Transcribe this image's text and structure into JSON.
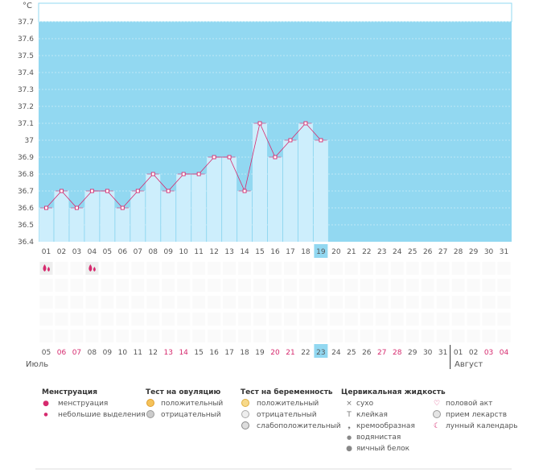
{
  "chart_data": {
    "type": "line",
    "unit_label": "°C",
    "y_ticks": [
      "37.7",
      "37.6",
      "37.5",
      "37.4",
      "37.3",
      "37.2",
      "37.1",
      "37",
      "36.9",
      "36.8",
      "36.7",
      "36.6",
      "36.5",
      "36.4"
    ],
    "ylim": [
      36.4,
      37.7
    ],
    "cycle_days": [
      "01",
      "02",
      "03",
      "04",
      "05",
      "06",
      "07",
      "08",
      "09",
      "10",
      "11",
      "12",
      "13",
      "14",
      "15",
      "16",
      "17",
      "18",
      "19",
      "20",
      "21",
      "22",
      "23",
      "24",
      "25",
      "26",
      "27",
      "28",
      "29",
      "30",
      "31"
    ],
    "current_cycle_day": "19",
    "temperatures": [
      36.6,
      36.7,
      36.6,
      36.7,
      36.7,
      36.6,
      36.7,
      36.8,
      36.7,
      36.8,
      36.8,
      36.9,
      36.9,
      36.7,
      37.1,
      36.9,
      37.0,
      37.1,
      37.0
    ],
    "menstruation_days": [
      "01",
      "04"
    ],
    "dates": [
      {
        "d": "05",
        "weekend": false
      },
      {
        "d": "06",
        "weekend": true
      },
      {
        "d": "07",
        "weekend": true
      },
      {
        "d": "08",
        "weekend": false
      },
      {
        "d": "09",
        "weekend": false
      },
      {
        "d": "10",
        "weekend": false
      },
      {
        "d": "11",
        "weekend": false
      },
      {
        "d": "12",
        "weekend": false
      },
      {
        "d": "13",
        "weekend": true
      },
      {
        "d": "14",
        "weekend": true
      },
      {
        "d": "15",
        "weekend": false
      },
      {
        "d": "16",
        "weekend": false
      },
      {
        "d": "17",
        "weekend": false
      },
      {
        "d": "18",
        "weekend": false
      },
      {
        "d": "19",
        "weekend": false
      },
      {
        "d": "20",
        "weekend": true
      },
      {
        "d": "21",
        "weekend": true
      },
      {
        "d": "22",
        "weekend": false
      },
      {
        "d": "23",
        "weekend": false
      },
      {
        "d": "24",
        "weekend": false
      },
      {
        "d": "25",
        "weekend": false
      },
      {
        "d": "26",
        "weekend": false
      },
      {
        "d": "27",
        "weekend": true
      },
      {
        "d": "28",
        "weekend": true
      },
      {
        "d": "29",
        "weekend": false
      },
      {
        "d": "30",
        "weekend": false
      },
      {
        "d": "31",
        "weekend": false
      },
      {
        "d": "01",
        "weekend": false
      },
      {
        "d": "02",
        "weekend": false
      },
      {
        "d": "03",
        "weekend": true
      },
      {
        "d": "04",
        "weekend": true
      }
    ],
    "current_date": "23",
    "month_first": "Июль",
    "month_second": "Август",
    "colors": {
      "fill": "#92d8f1",
      "bar": "#cdeefc",
      "line": "#d62a6e",
      "weekend": "#d62a6e",
      "highlight": "#92d8f1"
    }
  },
  "legend": {
    "menstruation": {
      "title": "Менструация",
      "items": [
        "менструация",
        "небольшие выделения"
      ]
    },
    "ovulation": {
      "title": "Тест на овуляцию",
      "items": [
        "положительный",
        "отрицательный"
      ]
    },
    "pregnancy": {
      "title": "Тест на беременность",
      "items": [
        "положительный",
        "отрицательный",
        "слабоположительный"
      ]
    },
    "cervical": {
      "title": "Цервикальная жидкость",
      "items": [
        "сухо",
        "клейкая",
        "кремообразная",
        "водянистая",
        "яичный белок"
      ]
    },
    "other": {
      "items": [
        "половой акт",
        "прием лекарств",
        "лунный календарь"
      ]
    }
  }
}
